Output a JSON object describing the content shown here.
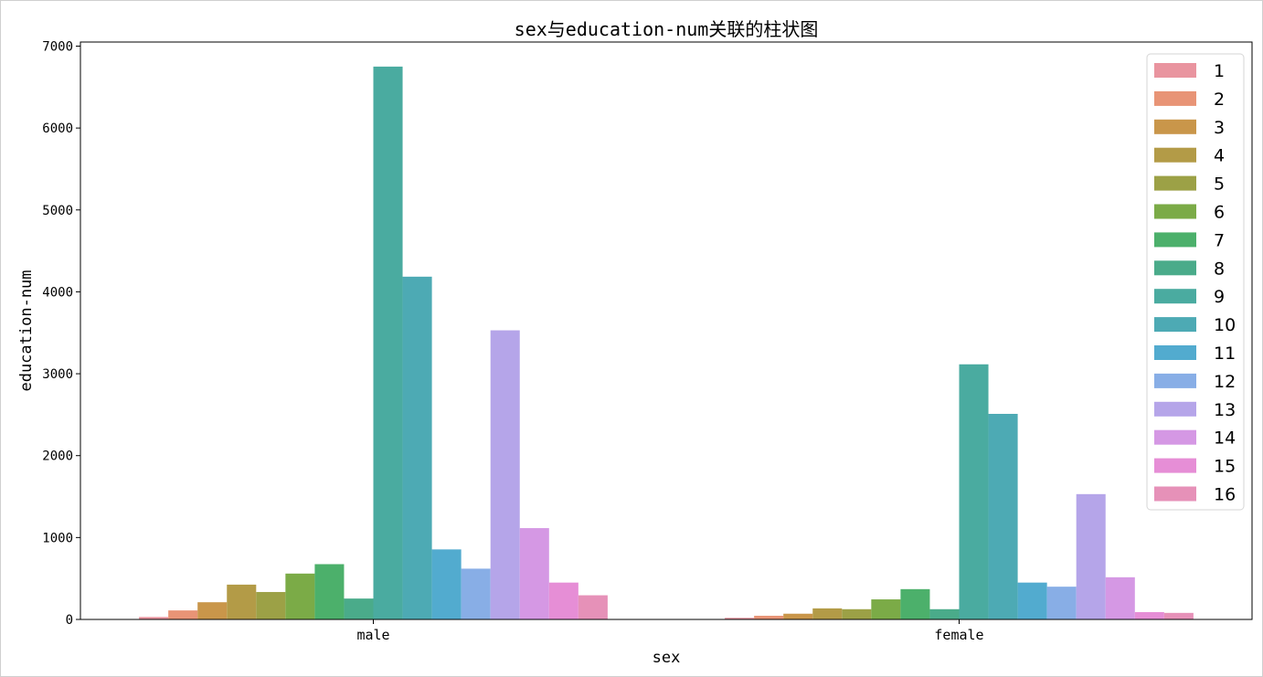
{
  "chart_data": {
    "type": "bar",
    "title": "sex与education-num关联的柱状图",
    "xlabel": "sex",
    "ylabel": "education-num",
    "categories": [
      "male",
      "female"
    ],
    "ylim": [
      0,
      7050
    ],
    "yticks": [
      0,
      1000,
      2000,
      3000,
      4000,
      5000,
      6000,
      7000
    ],
    "grid": false,
    "legend_position": "top-right",
    "series": [
      {
        "name": "1",
        "color": "#e9949f",
        "values": [
          30,
          20
        ]
      },
      {
        "name": "2",
        "color": "#e89476",
        "values": [
          110,
          45
        ]
      },
      {
        "name": "3",
        "color": "#c9964a",
        "values": [
          210,
          70
        ]
      },
      {
        "name": "4",
        "color": "#b39b47",
        "values": [
          425,
          135
        ]
      },
      {
        "name": "5",
        "color": "#9ca146",
        "values": [
          335,
          125
        ]
      },
      {
        "name": "6",
        "color": "#7bab47",
        "values": [
          560,
          245
        ]
      },
      {
        "name": "7",
        "color": "#4cb06b",
        "values": [
          675,
          370
        ]
      },
      {
        "name": "8",
        "color": "#4aab8a",
        "values": [
          255,
          125
        ]
      },
      {
        "name": "9",
        "color": "#4aaba0",
        "values": [
          6750,
          3115
        ]
      },
      {
        "name": "10",
        "color": "#4daab4",
        "values": [
          4185,
          2510
        ]
      },
      {
        "name": "11",
        "color": "#52abcf",
        "values": [
          855,
          450
        ]
      },
      {
        "name": "12",
        "color": "#88aee6",
        "values": [
          620,
          400
        ]
      },
      {
        "name": "13",
        "color": "#b5a5e9",
        "values": [
          3530,
          1530
        ]
      },
      {
        "name": "14",
        "color": "#d598e4",
        "values": [
          1115,
          515
        ]
      },
      {
        "name": "15",
        "color": "#e68ed6",
        "values": [
          450,
          90
        ]
      },
      {
        "name": "16",
        "color": "#e691b8",
        "values": [
          295,
          80
        ]
      }
    ]
  }
}
